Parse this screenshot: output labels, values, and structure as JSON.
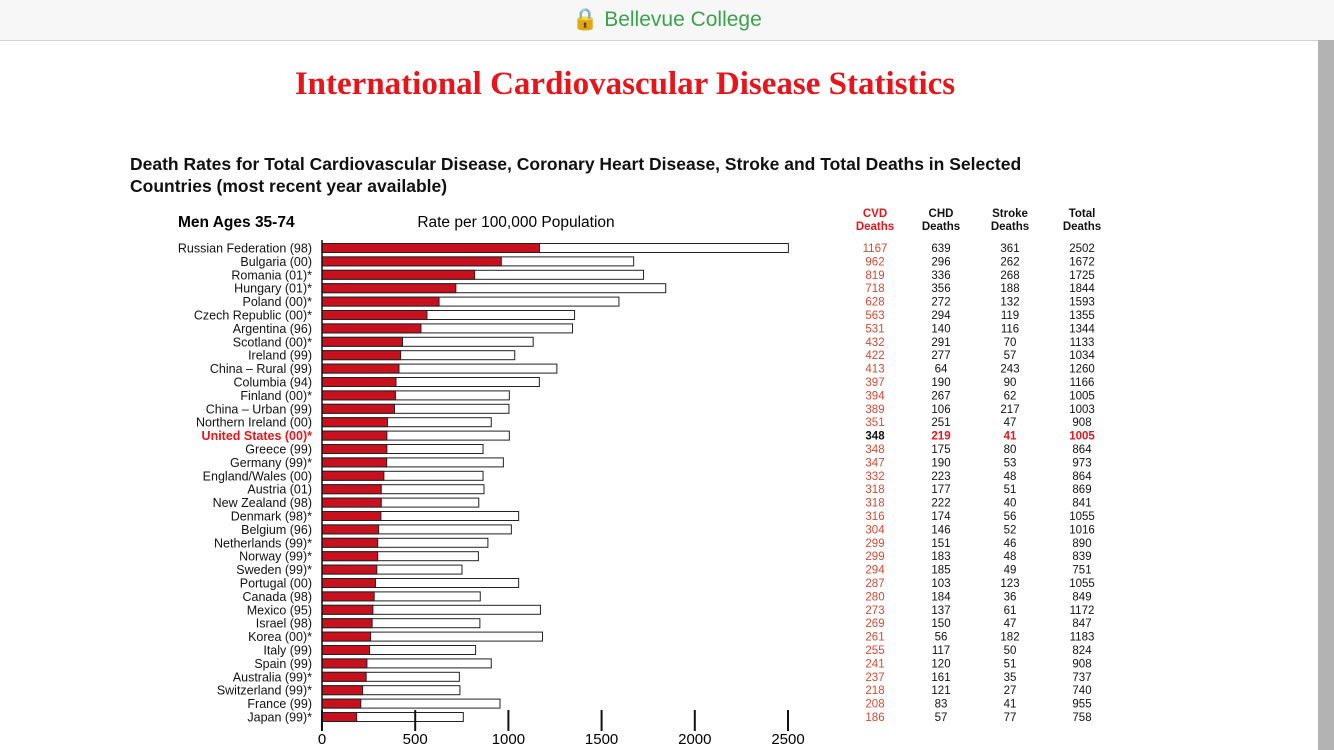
{
  "browser": {
    "site_title": "Bellevue College",
    "lock_icon": "lock-icon"
  },
  "page": {
    "title": "International Cardiovascular Disease Statistics"
  },
  "chart_data": {
    "type": "bar",
    "title": "Death Rates for Total Cardiovascular Disease, Coronary Heart Disease, Stroke and Total Deaths in Selected Countries (most recent year available)",
    "panel_label": "Men Ages 35-74",
    "xlabel": "Rate per 100,000 Population",
    "xlim": [
      0,
      2500
    ],
    "xticks": [
      "0",
      "500",
      "1000",
      "1500",
      "2000",
      "2500"
    ],
    "highlight": "United States (00)*",
    "colors": {
      "cvd": "#c8101e",
      "total": "#ffffff",
      "highlight": "#e8141a"
    },
    "categories": [
      "Russian Federation (98)",
      "Bulgaria (00)",
      "Romania (01)*",
      "Hungary (01)*",
      "Poland (00)*",
      "Czech Republic (00)*",
      "Argentina (96)",
      "Scotland (00)*",
      "Ireland (99)",
      "China – Rural (99)",
      "Columbia (94)",
      "Finland (00)*",
      "China – Urban (99)",
      "Northern Ireland (00)",
      "United States (00)*",
      "Greece (99)",
      "Germany (99)*",
      "England/Wales (00)",
      "Austria (01)",
      "New Zealand (98)",
      "Denmark (98)*",
      "Belgium (96)",
      "Netherlands (99)*",
      "Norway (99)*",
      "Sweden (99)*",
      "Portugal (00)",
      "Canada (98)",
      "Mexico (95)",
      "Israel (98)",
      "Korea (00)*",
      "Italy (99)",
      "Spain (99)",
      "Australia (99)*",
      "Switzerland (99)*",
      "France (99)",
      "Japan (99)*"
    ],
    "columns": [
      "CVD Deaths",
      "CHD Deaths",
      "Stroke Deaths",
      "Total Deaths"
    ],
    "series": [
      {
        "name": "CVD Deaths",
        "values": [
          1167,
          962,
          819,
          718,
          628,
          563,
          531,
          432,
          422,
          413,
          397,
          394,
          389,
          351,
          348,
          348,
          347,
          332,
          318,
          318,
          316,
          304,
          299,
          299,
          294,
          287,
          280,
          273,
          269,
          261,
          255,
          241,
          237,
          218,
          208,
          186
        ]
      },
      {
        "name": "CHD Deaths",
        "values": [
          639,
          296,
          336,
          356,
          272,
          294,
          140,
          291,
          277,
          64,
          190,
          267,
          106,
          251,
          219,
          175,
          190,
          223,
          177,
          222,
          174,
          146,
          151,
          183,
          185,
          103,
          184,
          137,
          150,
          56,
          117,
          120,
          161,
          121,
          83,
          57
        ]
      },
      {
        "name": "Stroke Deaths",
        "values": [
          361,
          262,
          268,
          188,
          132,
          119,
          116,
          70,
          57,
          243,
          90,
          62,
          217,
          47,
          41,
          80,
          53,
          48,
          51,
          40,
          56,
          52,
          46,
          48,
          49,
          123,
          36,
          61,
          47,
          182,
          50,
          51,
          35,
          27,
          41,
          77
        ]
      },
      {
        "name": "Total Deaths",
        "values": [
          2502,
          1672,
          1725,
          1844,
          1593,
          1355,
          1344,
          1133,
          1034,
          1260,
          1166,
          1005,
          1003,
          908,
          1005,
          864,
          973,
          864,
          869,
          841,
          1055,
          1016,
          890,
          839,
          751,
          1055,
          849,
          1172,
          847,
          1183,
          824,
          908,
          737,
          740,
          955,
          758
        ]
      }
    ]
  }
}
